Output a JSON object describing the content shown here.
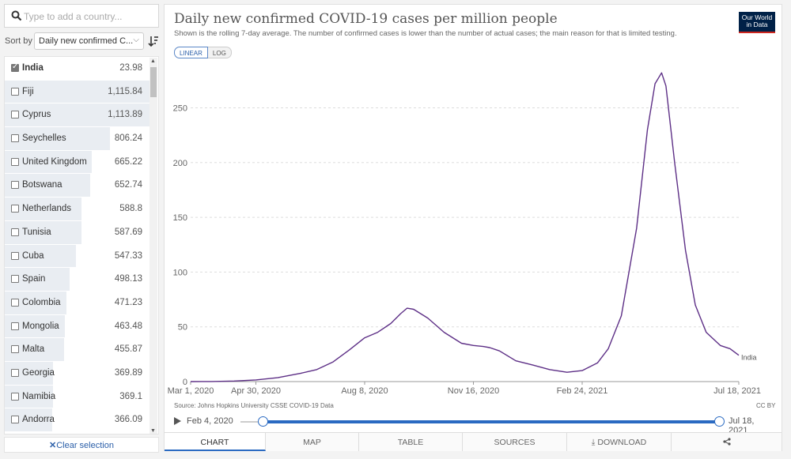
{
  "search": {
    "placeholder": "Type to add a country..."
  },
  "sort": {
    "label": "Sort by",
    "selected": "Daily new confirmed C..."
  },
  "countries": [
    {
      "name": "India",
      "value": "23.98",
      "checked": true,
      "share": 0.0
    },
    {
      "name": "Fiji",
      "value": "1,115.84",
      "checked": false,
      "share": 1.0
    },
    {
      "name": "Cyprus",
      "value": "1,113.89",
      "checked": false,
      "share": 0.998
    },
    {
      "name": "Seychelles",
      "value": "806.24",
      "checked": false,
      "share": 0.723
    },
    {
      "name": "United Kingdom",
      "value": "665.22",
      "checked": false,
      "share": 0.596
    },
    {
      "name": "Botswana",
      "value": "652.74",
      "checked": false,
      "share": 0.585
    },
    {
      "name": "Netherlands",
      "value": "588.8",
      "checked": false,
      "share": 0.528
    },
    {
      "name": "Tunisia",
      "value": "587.69",
      "checked": false,
      "share": 0.527
    },
    {
      "name": "Cuba",
      "value": "547.33",
      "checked": false,
      "share": 0.491
    },
    {
      "name": "Spain",
      "value": "498.13",
      "checked": false,
      "share": 0.446
    },
    {
      "name": "Colombia",
      "value": "471.23",
      "checked": false,
      "share": 0.422
    },
    {
      "name": "Mongolia",
      "value": "463.48",
      "checked": false,
      "share": 0.415
    },
    {
      "name": "Malta",
      "value": "455.87",
      "checked": false,
      "share": 0.409
    },
    {
      "name": "Georgia",
      "value": "369.89",
      "checked": false,
      "share": 0.331
    },
    {
      "name": "Namibia",
      "value": "369.1",
      "checked": false,
      "share": 0.331
    },
    {
      "name": "Andorra",
      "value": "366.09",
      "checked": false,
      "share": 0.328
    }
  ],
  "clear_label": "Clear selection",
  "header": {
    "title": "Daily new confirmed COVID-19 cases per million people",
    "subtitle": "Shown is the rolling 7-day average. The number of confirmed cases is lower than the number of actual cases; the main reason for that is limited testing.",
    "logo_line1": "Our World",
    "logo_line2": "in Data"
  },
  "scale_toggle": {
    "linear": "LINEAR",
    "log": "LOG"
  },
  "footer": {
    "source": "Source: Johns Hopkins University CSSE COVID-19 Data",
    "license": "CC BY"
  },
  "timeline": {
    "start": "Feb 4, 2020",
    "end": "Jul 18, 2021"
  },
  "tabs": [
    "CHART",
    "MAP",
    "TABLE",
    "SOURCES",
    "DOWNLOAD"
  ],
  "colors": {
    "line": "#5d2f86",
    "accent": "#2a6ac2",
    "logo_bg": "#002147",
    "logo_bar": "#ce261e"
  },
  "chart_data": {
    "type": "line",
    "x_tick_labels": [
      "Mar 1, 2020",
      "Apr 30, 2020",
      "Aug 8, 2020",
      "Nov 16, 2020",
      "Feb 24, 2021",
      "Jul 18, 2021"
    ],
    "y_ticks": [
      0,
      50,
      100,
      150,
      200,
      250
    ],
    "ylim": [
      0,
      285
    ],
    "xlim": [
      "2020-03-01",
      "2021-07-18"
    ],
    "grid": true,
    "series": [
      {
        "name": "India",
        "points": [
          [
            "2020-03-01",
            0.0
          ],
          [
            "2020-03-20",
            0.1
          ],
          [
            "2020-04-10",
            0.5
          ],
          [
            "2020-04-30",
            1.5
          ],
          [
            "2020-05-20",
            3.5
          ],
          [
            "2020-06-10",
            7.5
          ],
          [
            "2020-06-25",
            11
          ],
          [
            "2020-07-10",
            18
          ],
          [
            "2020-07-25",
            29
          ],
          [
            "2020-08-08",
            40
          ],
          [
            "2020-08-20",
            45
          ],
          [
            "2020-09-01",
            53
          ],
          [
            "2020-09-10",
            62
          ],
          [
            "2020-09-16",
            67
          ],
          [
            "2020-09-22",
            66
          ],
          [
            "2020-10-05",
            58
          ],
          [
            "2020-10-20",
            45
          ],
          [
            "2020-11-05",
            35
          ],
          [
            "2020-11-16",
            33
          ],
          [
            "2020-11-25",
            32
          ],
          [
            "2020-12-01",
            31
          ],
          [
            "2020-12-10",
            28
          ],
          [
            "2020-12-25",
            19
          ],
          [
            "2021-01-10",
            15
          ],
          [
            "2021-01-25",
            11
          ],
          [
            "2021-02-10",
            8.5
          ],
          [
            "2021-02-24",
            10
          ],
          [
            "2021-03-10",
            17
          ],
          [
            "2021-03-20",
            30
          ],
          [
            "2021-04-01",
            60
          ],
          [
            "2021-04-15",
            140
          ],
          [
            "2021-04-25",
            230
          ],
          [
            "2021-05-02",
            272
          ],
          [
            "2021-05-08",
            282
          ],
          [
            "2021-05-12",
            270
          ],
          [
            "2021-05-20",
            200
          ],
          [
            "2021-05-30",
            120
          ],
          [
            "2021-06-08",
            70
          ],
          [
            "2021-06-18",
            45
          ],
          [
            "2021-07-01",
            33
          ],
          [
            "2021-07-10",
            30
          ],
          [
            "2021-07-18",
            24
          ]
        ]
      }
    ]
  }
}
